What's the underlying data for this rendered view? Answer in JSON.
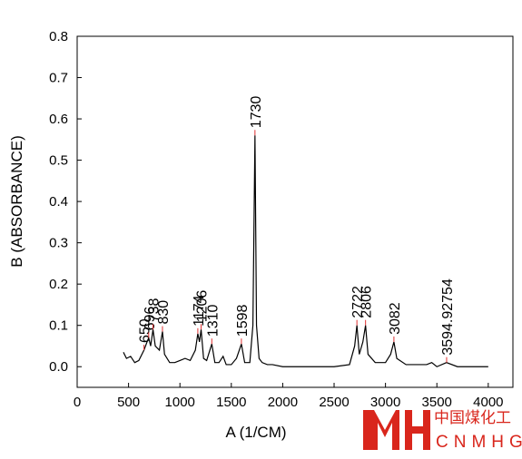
{
  "chart_data": {
    "type": "line",
    "xlabel": "A (1/CM)",
    "ylabel": "B (ABSORBANCE)",
    "x": [
      450,
      480,
      520,
      560,
      600,
      650,
      680,
      696,
      715,
      738,
      760,
      800,
      830,
      850,
      900,
      950,
      1000,
      1050,
      1100,
      1150,
      1174,
      1190,
      1206,
      1230,
      1260,
      1310,
      1340,
      1380,
      1420,
      1450,
      1500,
      1550,
      1598,
      1630,
      1680,
      1710,
      1730,
      1745,
      1770,
      1800,
      1850,
      1900,
      2000,
      2200,
      2500,
      2650,
      2700,
      2722,
      2745,
      2780,
      2806,
      2830,
      2900,
      3000,
      3050,
      3082,
      3110,
      3200,
      3400,
      3450,
      3500,
      3594,
      3700,
      4000
    ],
    "values": [
      0.035,
      0.02,
      0.025,
      0.01,
      0.015,
      0.04,
      0.06,
      0.07,
      0.05,
      0.09,
      0.05,
      0.04,
      0.085,
      0.03,
      0.01,
      0.01,
      0.015,
      0.02,
      0.015,
      0.04,
      0.08,
      0.06,
      0.09,
      0.02,
      0.015,
      0.055,
      0.01,
      0.01,
      0.025,
      0.005,
      0.005,
      0.02,
      0.055,
      0.01,
      0.01,
      0.1,
      0.56,
      0.1,
      0.02,
      0.01,
      0.005,
      0.005,
      0.0,
      0.0,
      0.0,
      0.005,
      0.05,
      0.1,
      0.03,
      0.06,
      0.1,
      0.03,
      0.01,
      0.01,
      0.03,
      0.06,
      0.02,
      0.005,
      0.005,
      0.01,
      0.0,
      0.01,
      0.0,
      0.0
    ],
    "color": "#000000",
    "annotations": [
      {
        "x": 650,
        "y": 0.04
      },
      {
        "x": 696,
        "y": 0.07
      },
      {
        "x": 738,
        "y": 0.09
      },
      {
        "x": 830,
        "y": 0.085
      },
      {
        "x": 1174,
        "y": 0.08
      },
      {
        "x": 1206,
        "y": 0.09
      },
      {
        "x": 1310,
        "y": 0.055
      },
      {
        "x": 1598,
        "y": 0.055
      },
      {
        "x": 1730,
        "y": 0.56
      },
      {
        "x": 2722,
        "y": 0.1
      },
      {
        "x": 2806,
        "y": 0.1
      },
      {
        "x": 3082,
        "y": 0.06
      },
      {
        "x": 3594.92754,
        "y": 0.01
      }
    ],
    "xlim": [
      0,
      4240
    ],
    "ylim": [
      -0.05,
      0.8
    ],
    "xticks": [
      0,
      500,
      1000,
      1500,
      2000,
      2500,
      3000,
      3500,
      4000
    ],
    "yticks": [
      {
        "value": 0,
        "label": "0.0"
      },
      0.1,
      0.2,
      0.3,
      0.4,
      0.5,
      0.6,
      0.7,
      0.8
    ]
  },
  "watermark": {
    "cn": "中国煤化工",
    "en": "CNMHG"
  }
}
